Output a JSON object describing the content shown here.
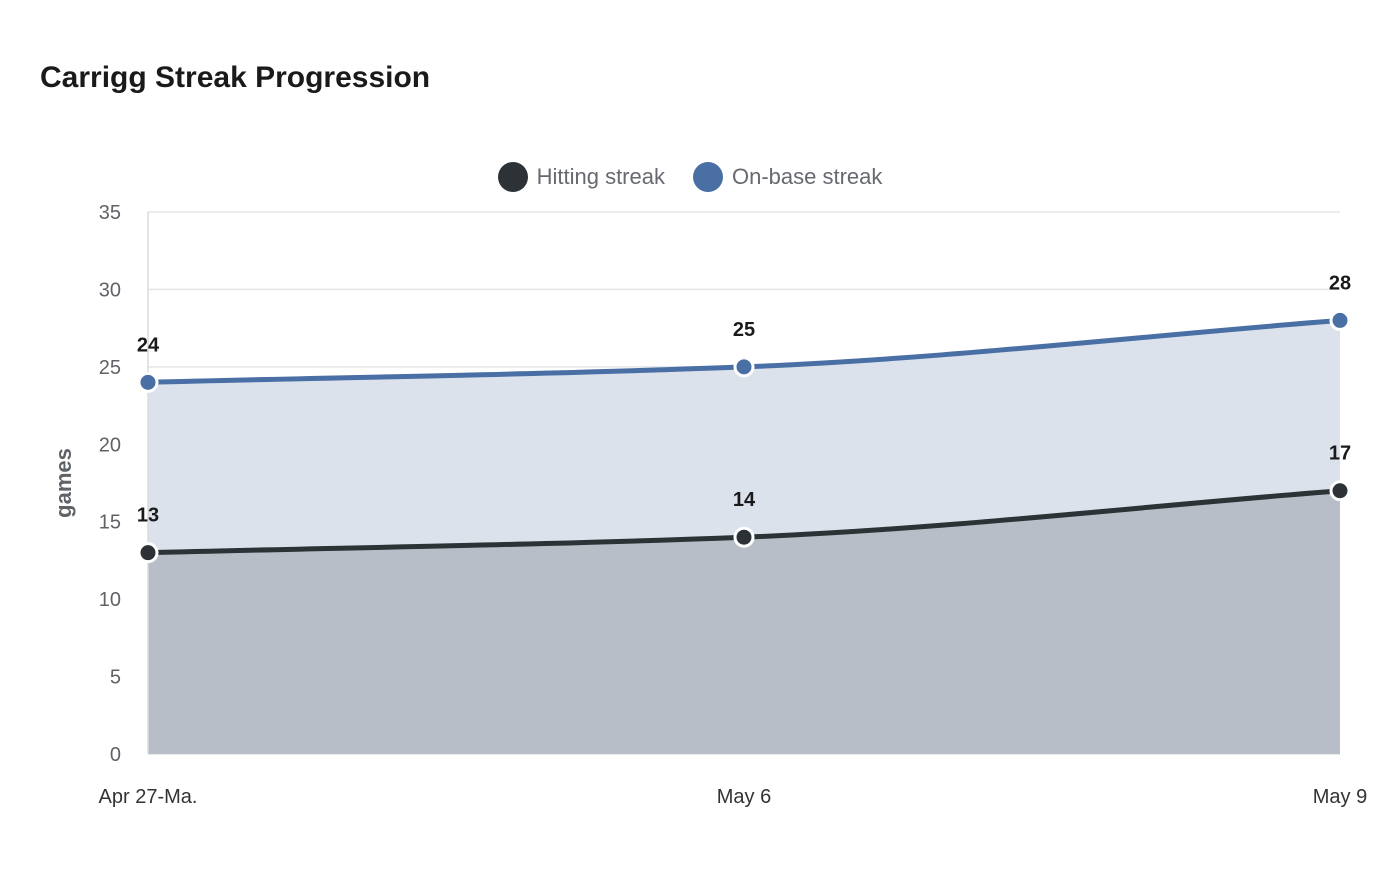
{
  "chart_data": {
    "type": "area",
    "title": "Carrigg Streak Progression",
    "xlabel": "",
    "ylabel": "games",
    "categories": [
      "Apr 27-Ma.",
      "May 6",
      "May 9"
    ],
    "ylim": [
      0,
      35
    ],
    "yticks": [
      0,
      5,
      10,
      15,
      20,
      25,
      30,
      35
    ],
    "grid": true,
    "legend_position": "top-center",
    "series": [
      {
        "name": "Hitting streak",
        "values": [
          13,
          14,
          17
        ],
        "color": "#2d3236",
        "fill": "#b7bec7"
      },
      {
        "name": "On-base streak",
        "values": [
          24,
          25,
          28
        ],
        "color": "#4a6fa5",
        "fill": "#dbe2ec"
      }
    ]
  }
}
